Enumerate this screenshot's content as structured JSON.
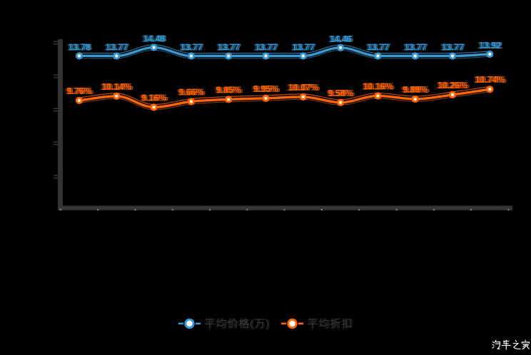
{
  "chart_data": {
    "type": "line",
    "title": "",
    "background": "#000000",
    "axis_color": "#333333",
    "grid": false,
    "legend_position": "bottom",
    "x_tick_count": 13,
    "series": [
      {
        "name": "平均价格(万)",
        "color": "#3898D0",
        "values": [
          13.78,
          13.77,
          14.48,
          13.77,
          13.77,
          13.77,
          13.77,
          14.46,
          13.77,
          13.77,
          13.77,
          13.92
        ],
        "point_labels": [
          "13.78",
          "13.77",
          "14.48",
          "13.77",
          "13.77",
          "13.77",
          "13.77",
          "14.46",
          "13.77",
          "13.77",
          "13.77",
          "13.92"
        ]
      },
      {
        "name": "平均折扣",
        "color": "#FF6600",
        "values": [
          9.76,
          10.14,
          9.16,
          9.66,
          9.85,
          9.95,
          10.07,
          9.58,
          10.16,
          9.88,
          10.26,
          10.74
        ],
        "point_labels": [
          "9.76%",
          "10.14%",
          "9.16%",
          "9.66%",
          "9.85%",
          "9.95%",
          "10.07%",
          "9.58%",
          "10.16%",
          "9.88%",
          "10.26%",
          "10.74%"
        ]
      }
    ]
  },
  "legend": {
    "items": [
      {
        "label": "平均价格(万)",
        "color": "#3898D0"
      },
      {
        "label": "平均折扣",
        "color": "#FF6600"
      }
    ]
  },
  "watermark": {
    "text": "汽车之家",
    "color": "#ffffff"
  }
}
